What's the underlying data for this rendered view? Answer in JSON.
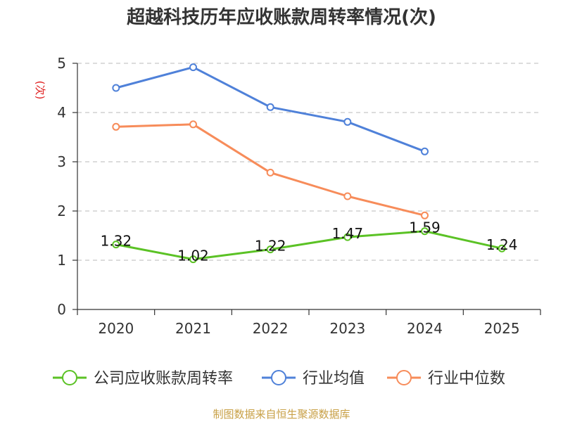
{
  "chart_data": {
    "type": "line",
    "title": "超越科技历年应收账款周转率情况(次)",
    "ylabel": "(次)",
    "xlabel": "",
    "categories": [
      "2020",
      "2021",
      "2022",
      "2023",
      "2024",
      "2025"
    ],
    "ylim": [
      0,
      5
    ],
    "yticks": [
      0,
      1,
      2,
      3,
      4,
      5
    ],
    "grid": true,
    "legend_position": "bottom",
    "series": [
      {
        "name": "公司应收账款周转率",
        "color": "#5bc225",
        "values": [
          1.32,
          1.02,
          1.22,
          1.47,
          1.59,
          1.24
        ],
        "show_labels": true
      },
      {
        "name": "行业均值",
        "color": "#4f81d9",
        "values": [
          4.5,
          4.92,
          4.11,
          3.81,
          3.21,
          null
        ],
        "show_labels": false
      },
      {
        "name": "行业中位数",
        "color": "#f78c5a",
        "values": [
          3.71,
          3.76,
          2.78,
          2.3,
          1.91,
          null
        ],
        "show_labels": false
      }
    ],
    "source": "制图数据来自恒生聚源数据库"
  }
}
